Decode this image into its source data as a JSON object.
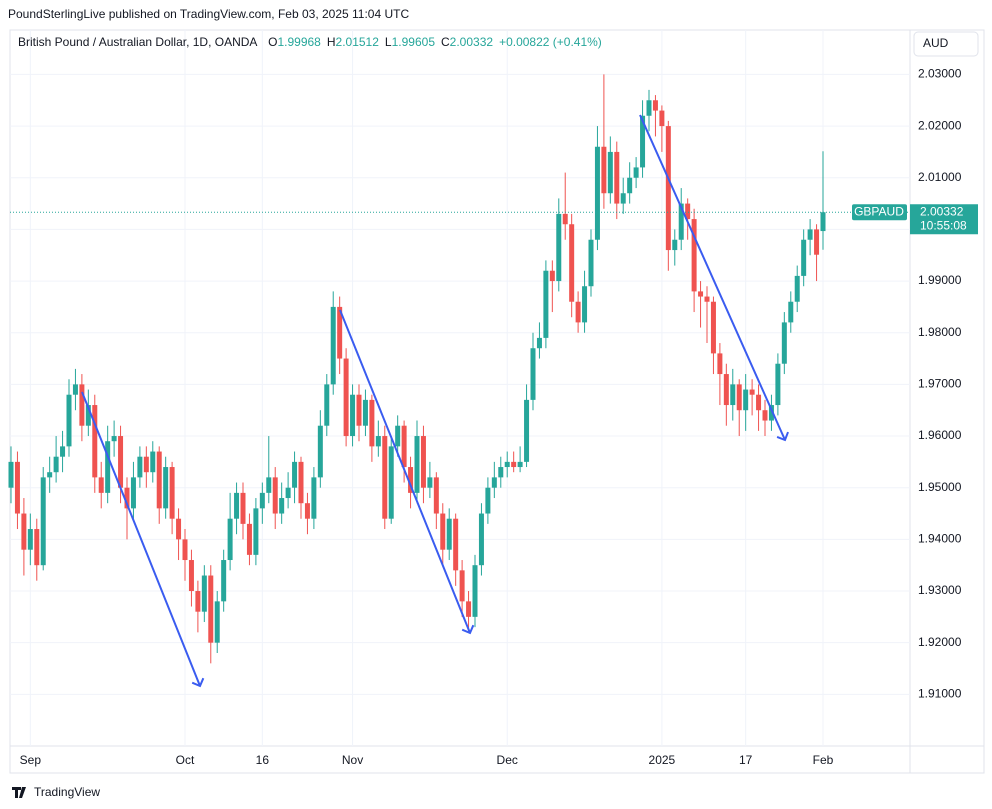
{
  "header": {
    "publisher": "PoundSterlingLive published on TradingView.com, Feb 03, 2025 11:04 UTC"
  },
  "chart_data": {
    "type": "candlestick",
    "title": "British Pound / Australian Dollar, 1D, OANDA",
    "ohlc_labels": [
      "O",
      "H",
      "L",
      "C"
    ],
    "change": "+0.00822 (+0.41%)",
    "currency": "AUD",
    "symbol": "GBPAUD",
    "countdown": "10:55:08",
    "up_color": "#26a69a",
    "down_color": "#ef5350",
    "candles": [
      [
        1.95,
        1.958,
        1.947,
        1.955
      ],
      [
        1.955,
        1.957,
        1.942,
        1.945
      ],
      [
        1.945,
        1.948,
        1.933,
        1.938
      ],
      [
        1.938,
        1.945,
        1.935,
        1.942
      ],
      [
        1.942,
        1.944,
        1.932,
        1.935
      ],
      [
        1.935,
        1.954,
        1.934,
        1.952
      ],
      [
        1.952,
        1.956,
        1.949,
        1.953
      ],
      [
        1.953,
        1.96,
        1.951,
        1.956
      ],
      [
        1.956,
        1.961,
        1.953,
        1.958
      ],
      [
        1.958,
        1.971,
        1.956,
        1.968
      ],
      [
        1.968,
        1.973,
        1.965,
        1.97
      ],
      [
        1.97,
        1.972,
        1.959,
        1.962
      ],
      [
        1.962,
        1.969,
        1.96,
        1.966
      ],
      [
        1.966,
        1.968,
        1.949,
        1.952
      ],
      [
        1.952,
        1.955,
        1.946,
        1.949
      ],
      [
        1.949,
        1.962,
        1.947,
        1.959
      ],
      [
        1.959,
        1.963,
        1.956,
        1.96
      ],
      [
        1.96,
        1.962,
        1.947,
        1.95
      ],
      [
        1.95,
        1.952,
        1.94,
        1.946
      ],
      [
        1.946,
        1.955,
        1.944,
        1.952
      ],
      [
        1.952,
        1.958,
        1.95,
        1.956
      ],
      [
        1.956,
        1.958,
        1.95,
        1.953
      ],
      [
        1.953,
        1.959,
        1.951,
        1.957
      ],
      [
        1.957,
        1.958,
        1.943,
        1.946
      ],
      [
        1.946,
        1.956,
        1.944,
        1.954
      ],
      [
        1.954,
        1.955,
        1.941,
        1.944
      ],
      [
        1.944,
        1.946,
        1.936,
        1.94
      ],
      [
        1.94,
        1.942,
        1.932,
        1.936
      ],
      [
        1.936,
        1.938,
        1.927,
        1.93
      ],
      [
        1.93,
        1.932,
        1.922,
        1.926
      ],
      [
        1.926,
        1.935,
        1.924,
        1.933
      ],
      [
        1.933,
        1.935,
        1.916,
        1.92
      ],
      [
        1.92,
        1.93,
        1.918,
        1.928
      ],
      [
        1.928,
        1.938,
        1.926,
        1.936
      ],
      [
        1.936,
        1.949,
        1.934,
        1.944
      ],
      [
        1.944,
        1.951,
        1.941,
        1.949
      ],
      [
        1.949,
        1.951,
        1.94,
        1.943
      ],
      [
        1.943,
        1.945,
        1.935,
        1.937
      ],
      [
        1.937,
        1.948,
        1.935,
        1.946
      ],
      [
        1.946,
        1.951,
        1.943,
        1.949
      ],
      [
        1.949,
        1.96,
        1.947,
        1.952
      ],
      [
        1.952,
        1.954,
        1.942,
        1.945
      ],
      [
        1.945,
        1.951,
        1.943,
        1.948
      ],
      [
        1.948,
        1.953,
        1.946,
        1.95
      ],
      [
        1.95,
        1.957,
        1.947,
        1.955
      ],
      [
        1.955,
        1.956,
        1.944,
        1.947
      ],
      [
        1.947,
        1.949,
        1.941,
        1.944
      ],
      [
        1.944,
        1.954,
        1.942,
        1.952
      ],
      [
        1.952,
        1.965,
        1.95,
        1.962
      ],
      [
        1.962,
        1.972,
        1.96,
        1.97
      ],
      [
        1.97,
        1.988,
        1.968,
        1.985
      ],
      [
        1.985,
        1.987,
        1.972,
        1.975
      ],
      [
        1.975,
        1.977,
        1.958,
        1.96
      ],
      [
        1.96,
        1.97,
        1.958,
        1.968
      ],
      [
        1.968,
        1.97,
        1.959,
        1.962
      ],
      [
        1.962,
        1.969,
        1.96,
        1.967
      ],
      [
        1.967,
        1.968,
        1.955,
        1.958
      ],
      [
        1.958,
        1.963,
        1.956,
        1.96
      ],
      [
        1.96,
        1.962,
        1.942,
        1.944
      ],
      [
        1.944,
        1.96,
        1.943,
        1.958
      ],
      [
        1.958,
        1.964,
        1.956,
        1.962
      ],
      [
        1.962,
        1.963,
        1.951,
        1.954
      ],
      [
        1.954,
        1.956,
        1.946,
        1.949
      ],
      [
        1.949,
        1.963,
        1.947,
        1.96
      ],
      [
        1.96,
        1.962,
        1.947,
        1.95
      ],
      [
        1.95,
        1.955,
        1.948,
        1.952
      ],
      [
        1.952,
        1.953,
        1.942,
        1.945
      ],
      [
        1.945,
        1.947,
        1.935,
        1.938
      ],
      [
        1.938,
        1.946,
        1.936,
        1.944
      ],
      [
        1.944,
        1.945,
        1.931,
        1.934
      ],
      [
        1.934,
        1.936,
        1.925,
        1.928
      ],
      [
        1.928,
        1.93,
        1.922,
        1.925
      ],
      [
        1.925,
        1.937,
        1.923,
        1.935
      ],
      [
        1.935,
        1.947,
        1.933,
        1.945
      ],
      [
        1.945,
        1.952,
        1.943,
        1.95
      ],
      [
        1.95,
        1.955,
        1.948,
        1.952
      ],
      [
        1.952,
        1.956,
        1.95,
        1.954
      ],
      [
        1.954,
        1.957,
        1.952,
        1.955
      ],
      [
        1.955,
        1.957,
        1.953,
        1.954
      ],
      [
        1.954,
        1.958,
        1.953,
        1.955
      ],
      [
        1.955,
        1.97,
        1.954,
        1.967
      ],
      [
        1.967,
        1.98,
        1.965,
        1.977
      ],
      [
        1.977,
        1.982,
        1.975,
        1.979
      ],
      [
        1.979,
        1.994,
        1.977,
        1.992
      ],
      [
        1.992,
        1.994,
        1.984,
        1.99
      ],
      [
        1.99,
        2.006,
        1.988,
        2.003
      ],
      [
        2.003,
        2.011,
        1.998,
        2.001
      ],
      [
        2.001,
        2.003,
        1.983,
        1.986
      ],
      [
        1.986,
        1.988,
        1.98,
        1.982
      ],
      [
        1.982,
        1.992,
        1.98,
        1.989
      ],
      [
        1.989,
        2.0,
        1.987,
        1.998
      ],
      [
        1.998,
        2.02,
        1.996,
        2.016
      ],
      [
        2.016,
        2.03,
        2.004,
        2.007
      ],
      [
        2.007,
        2.018,
        2.005,
        2.015
      ],
      [
        2.015,
        2.017,
        2.002,
        2.005
      ],
      [
        2.005,
        2.01,
        2.003,
        2.007
      ],
      [
        2.007,
        2.013,
        2.005,
        2.01
      ],
      [
        2.01,
        2.014,
        2.008,
        2.012
      ],
      [
        2.012,
        2.025,
        2.01,
        2.022
      ],
      [
        2.022,
        2.027,
        2.019,
        2.025
      ],
      [
        2.025,
        2.026,
        2.018,
        2.023
      ],
      [
        2.023,
        2.024,
        2.015,
        2.02
      ],
      [
        2.02,
        2.021,
        1.992,
        1.996
      ],
      [
        1.996,
        2.0,
        1.993,
        1.998
      ],
      [
        1.998,
        2.008,
        1.996,
        2.005
      ],
      [
        2.005,
        2.006,
        1.998,
        2.002
      ],
      [
        2.002,
        2.004,
        1.984,
        1.988
      ],
      [
        1.988,
        1.99,
        1.981,
        1.987
      ],
      [
        1.987,
        1.989,
        1.978,
        1.986
      ],
      [
        1.986,
        1.987,
        1.972,
        1.976
      ],
      [
        1.976,
        1.978,
        1.966,
        1.972
      ],
      [
        1.972,
        1.974,
        1.962,
        1.966
      ],
      [
        1.966,
        1.973,
        1.963,
        1.97
      ],
      [
        1.97,
        1.971,
        1.96,
        1.965
      ],
      [
        1.965,
        1.972,
        1.961,
        1.969
      ],
      [
        1.969,
        1.971,
        1.964,
        1.968
      ],
      [
        1.968,
        1.97,
        1.961,
        1.965
      ],
      [
        1.965,
        1.967,
        1.96,
        1.963
      ],
      [
        1.963,
        1.968,
        1.961,
        1.966
      ],
      [
        1.966,
        1.976,
        1.964,
        1.974
      ],
      [
        1.974,
        1.984,
        1.972,
        1.982
      ],
      [
        1.982,
        1.988,
        1.98,
        1.986
      ],
      [
        1.986,
        1.993,
        1.984,
        1.991
      ],
      [
        1.991,
        2.0,
        1.989,
        1.998
      ],
      [
        1.998,
        2.002,
        1.995,
        2.0
      ],
      [
        2.0,
        2.001,
        1.99,
        1.9951
      ],
      [
        1.99968,
        2.01512,
        1.99605,
        2.00332
      ]
    ],
    "xlim": [
      0,
      126
    ],
    "xticks": [
      {
        "value": 3,
        "label": "Sep"
      },
      {
        "value": 27,
        "label": "Oct"
      },
      {
        "value": 39,
        "label": "16"
      },
      {
        "value": 53,
        "label": "Nov"
      },
      {
        "value": 77,
        "label": "Dec"
      },
      {
        "value": 101,
        "label": "2025"
      },
      {
        "value": 114,
        "label": "17"
      },
      {
        "value": 126,
        "label": "Feb"
      }
    ],
    "ylim": [
      1.9,
      2.0386
    ],
    "yticks": [
      {
        "value": 1.91,
        "label": "1.91000"
      },
      {
        "value": 1.92,
        "label": "1.92000"
      },
      {
        "value": 1.93,
        "label": "1.93000"
      },
      {
        "value": 1.94,
        "label": "1.94000"
      },
      {
        "value": 1.95,
        "label": "1.95000"
      },
      {
        "value": 1.96,
        "label": "1.96000"
      },
      {
        "value": 1.97,
        "label": "1.97000"
      },
      {
        "value": 1.98,
        "label": "1.98000"
      },
      {
        "value": 1.99,
        "label": "1.99000"
      },
      {
        "value": 2.0,
        "label": "2.00000"
      },
      {
        "value": 2.01,
        "label": "2.01000"
      },
      {
        "value": 2.02,
        "label": "2.02000"
      },
      {
        "value": 2.03,
        "label": "2.03000"
      }
    ],
    "grid": true
  },
  "footer": {
    "brand": "TradingView"
  }
}
